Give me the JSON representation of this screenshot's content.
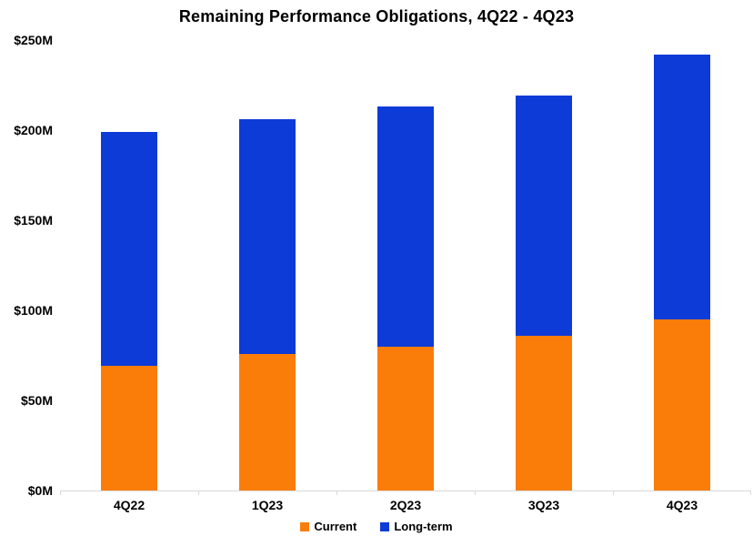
{
  "chart_data": {
    "type": "bar",
    "stacked": true,
    "title": "Remaining Performance Obligations, 4Q22 - 4Q23",
    "categories": [
      "4Q22",
      "1Q23",
      "2Q23",
      "3Q23",
      "4Q23"
    ],
    "series": [
      {
        "name": "Current",
        "color": "#FA7D09",
        "values": [
          69,
          76,
          80,
          86,
          95
        ]
      },
      {
        "name": "Long-term",
        "color": "#0C3BD8",
        "values": [
          130,
          130,
          133,
          133,
          147
        ]
      }
    ],
    "totals": [
      199,
      206,
      213,
      219,
      242
    ],
    "unit": "$M",
    "ylim": [
      0,
      250
    ],
    "ytick_labels": [
      "$250M",
      "$200M",
      "$150M",
      "$100M",
      "$50M",
      "$0M"
    ],
    "xlabel": "",
    "ylabel": "",
    "grid": false,
    "legend_position": "bottom",
    "axis_line_color": "#D9D9D9",
    "text_color": "#000000"
  }
}
